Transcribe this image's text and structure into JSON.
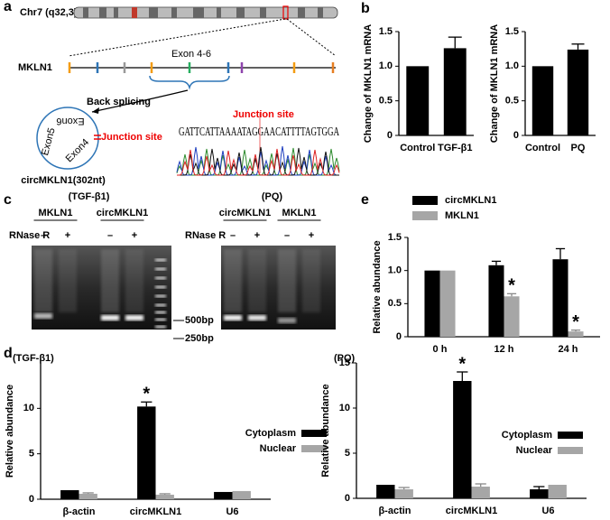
{
  "panel_labels": [
    "a",
    "b",
    "c",
    "d",
    "e"
  ],
  "panel_a": {
    "chromosome": "Chr7 (q32,3)",
    "gene": "MKLN1",
    "exon_range": "Exon 4-6",
    "back_splicing": "Back splicing",
    "circle_exons": [
      "Exon6",
      "Exon5",
      "Exon4"
    ],
    "junction_site": "Junction site",
    "circ_name": "circMKLN1(302nt)",
    "sequence": "GATTCATTAAAATAGGAACATTTTAGTGGA",
    "sequence_junction": "Junction site"
  },
  "panel_c": {
    "markers": [
      "500bp",
      "250bp"
    ],
    "gels": [
      {
        "treatment": "(TGF-β1)",
        "rnase": "RNase R",
        "groups": [
          "MKLN1",
          "circMKLN1"
        ],
        "lanes": [
          "–",
          "+",
          "–",
          "+"
        ]
      },
      {
        "treatment": "(PQ)",
        "rnase": "RNase R",
        "groups": [
          "circMKLN1",
          "MKLN1"
        ],
        "lanes": [
          "–",
          "+",
          "–",
          "+"
        ]
      }
    ]
  },
  "chart_data": [
    {
      "type": "bar",
      "ylabel": "Change of MKLN1 mRNA",
      "categories": [
        "Control",
        "TGF-β1"
      ],
      "values": [
        1,
        1.26
      ],
      "errors": [
        null,
        0.16
      ],
      "color": "#000000",
      "ylim": [
        0,
        1.5
      ],
      "yticks": [
        0,
        0.5,
        {
          "value": 1,
          "label": "1.0"
        },
        1.5
      ]
    },
    {
      "type": "bar",
      "ylabel": "Change of MKLN1 mRNA",
      "categories": [
        "Control",
        "PQ"
      ],
      "values": [
        1,
        1.24
      ],
      "errors": [
        null,
        0.08
      ],
      "color": "#000000",
      "ylim": [
        0,
        1.5
      ],
      "yticks": [
        0,
        0.5,
        {
          "value": 1,
          "label": "1.0"
        },
        1.5
      ]
    },
    {
      "type": "bar",
      "ylabel": "Relative abundance",
      "categories": [
        "0 h",
        "12 h",
        "24 h"
      ],
      "series": [
        {
          "name": "circMKLN1",
          "color": "#000000",
          "values": [
            1,
            1.08,
            1.17
          ],
          "errors": [
            null,
            0.06,
            0.16
          ]
        },
        {
          "name": "MKLN1",
          "color": "#a6a6a6",
          "values": [
            1,
            0.61,
            0.08
          ],
          "errors": [
            null,
            0.04,
            0.02
          ],
          "marks": [
            null,
            "*",
            "*"
          ]
        }
      ],
      "ylim": [
        0,
        1.5
      ],
      "yticks": [
        0,
        0.5,
        {
          "value": 1,
          "label": "1.0"
        },
        1.5
      ],
      "legend": "top-left"
    },
    {
      "type": "bar",
      "title": "(TGF-β1)",
      "ylabel": "Relative abundance",
      "categories": [
        "β-actin",
        "circMKLN1",
        "U6"
      ],
      "series": [
        {
          "name": "Cytoplasm",
          "color": "#000000",
          "values": [
            1,
            10.2,
            0.8
          ],
          "errors": [
            null,
            0.5,
            null
          ],
          "marks": [
            null,
            "*",
            null
          ]
        },
        {
          "name": "Nuclear",
          "color": "#a6a6a6",
          "values": [
            0.6,
            0.5,
            0.9
          ],
          "errors": [
            0.1,
            0.1,
            null
          ]
        }
      ],
      "ylim": [
        0,
        15
      ],
      "yticks": [
        0,
        5,
        10
      ],
      "legend": "right"
    },
    {
      "type": "bar",
      "title": "(PQ)",
      "ylabel": "Relative abundance",
      "categories": [
        "β-actin",
        "circMKLN1",
        "U6"
      ],
      "series": [
        {
          "name": "Cytoplasm",
          "color": "#000000",
          "values": [
            1.5,
            13,
            1
          ],
          "errors": [
            null,
            1,
            0.3
          ],
          "marks": [
            null,
            "*",
            null
          ]
        },
        {
          "name": "Nuclear",
          "color": "#a6a6a6",
          "values": [
            1,
            1.3,
            1.5
          ],
          "errors": [
            0.2,
            0.3,
            null
          ]
        }
      ],
      "ylim": [
        0,
        15
      ],
      "yticks": [
        0,
        5,
        10,
        15
      ],
      "legend": "right"
    }
  ]
}
